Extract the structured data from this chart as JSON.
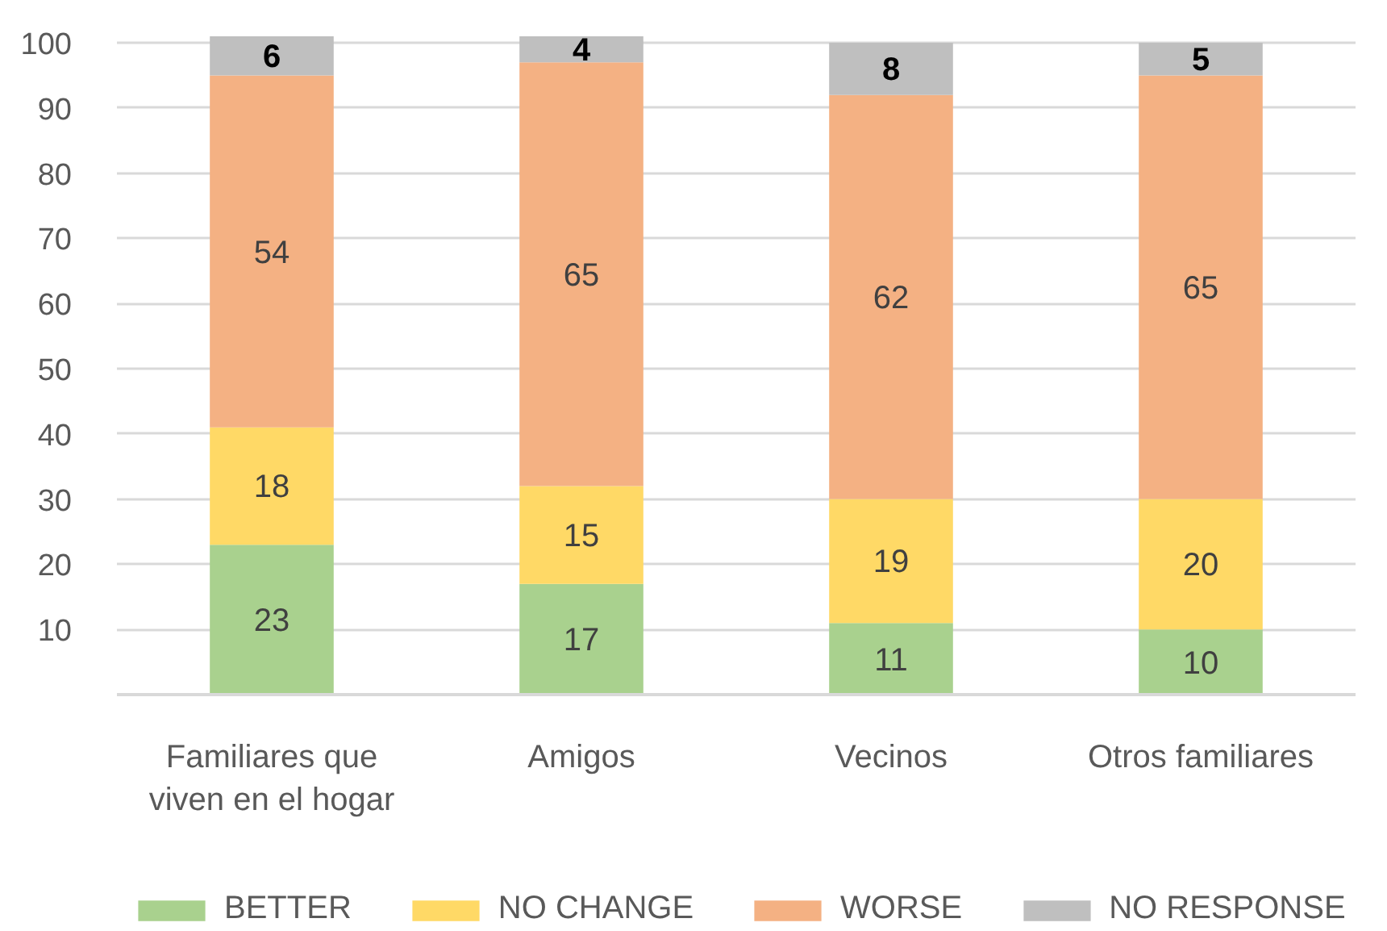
{
  "chart_data": {
    "type": "bar",
    "stacked": true,
    "categories": [
      "Familiares que viven en el hogar",
      "Amigos",
      "Vecinos",
      "Otros familiares"
    ],
    "series": [
      {
        "name": "BETTER",
        "color": "#a9d18e",
        "values": [
          23,
          17,
          11,
          10
        ]
      },
      {
        "name": "NO CHANGE",
        "color": "#ffd966",
        "values": [
          18,
          15,
          19,
          20
        ]
      },
      {
        "name": "WORSE",
        "color": "#f4b183",
        "values": [
          54,
          65,
          62,
          65
        ]
      },
      {
        "name": "NO RESPONSE",
        "color": "#bfbfbf",
        "values": [
          6,
          4,
          8,
          5
        ]
      }
    ],
    "ylim": [
      0,
      101
    ],
    "yticks": [
      {
        "value": 0,
        "label": null
      },
      10,
      20,
      30,
      40,
      50,
      60,
      70,
      80,
      90,
      100
    ],
    "grid": "y",
    "legend": "bottom",
    "data_labels": true
  }
}
